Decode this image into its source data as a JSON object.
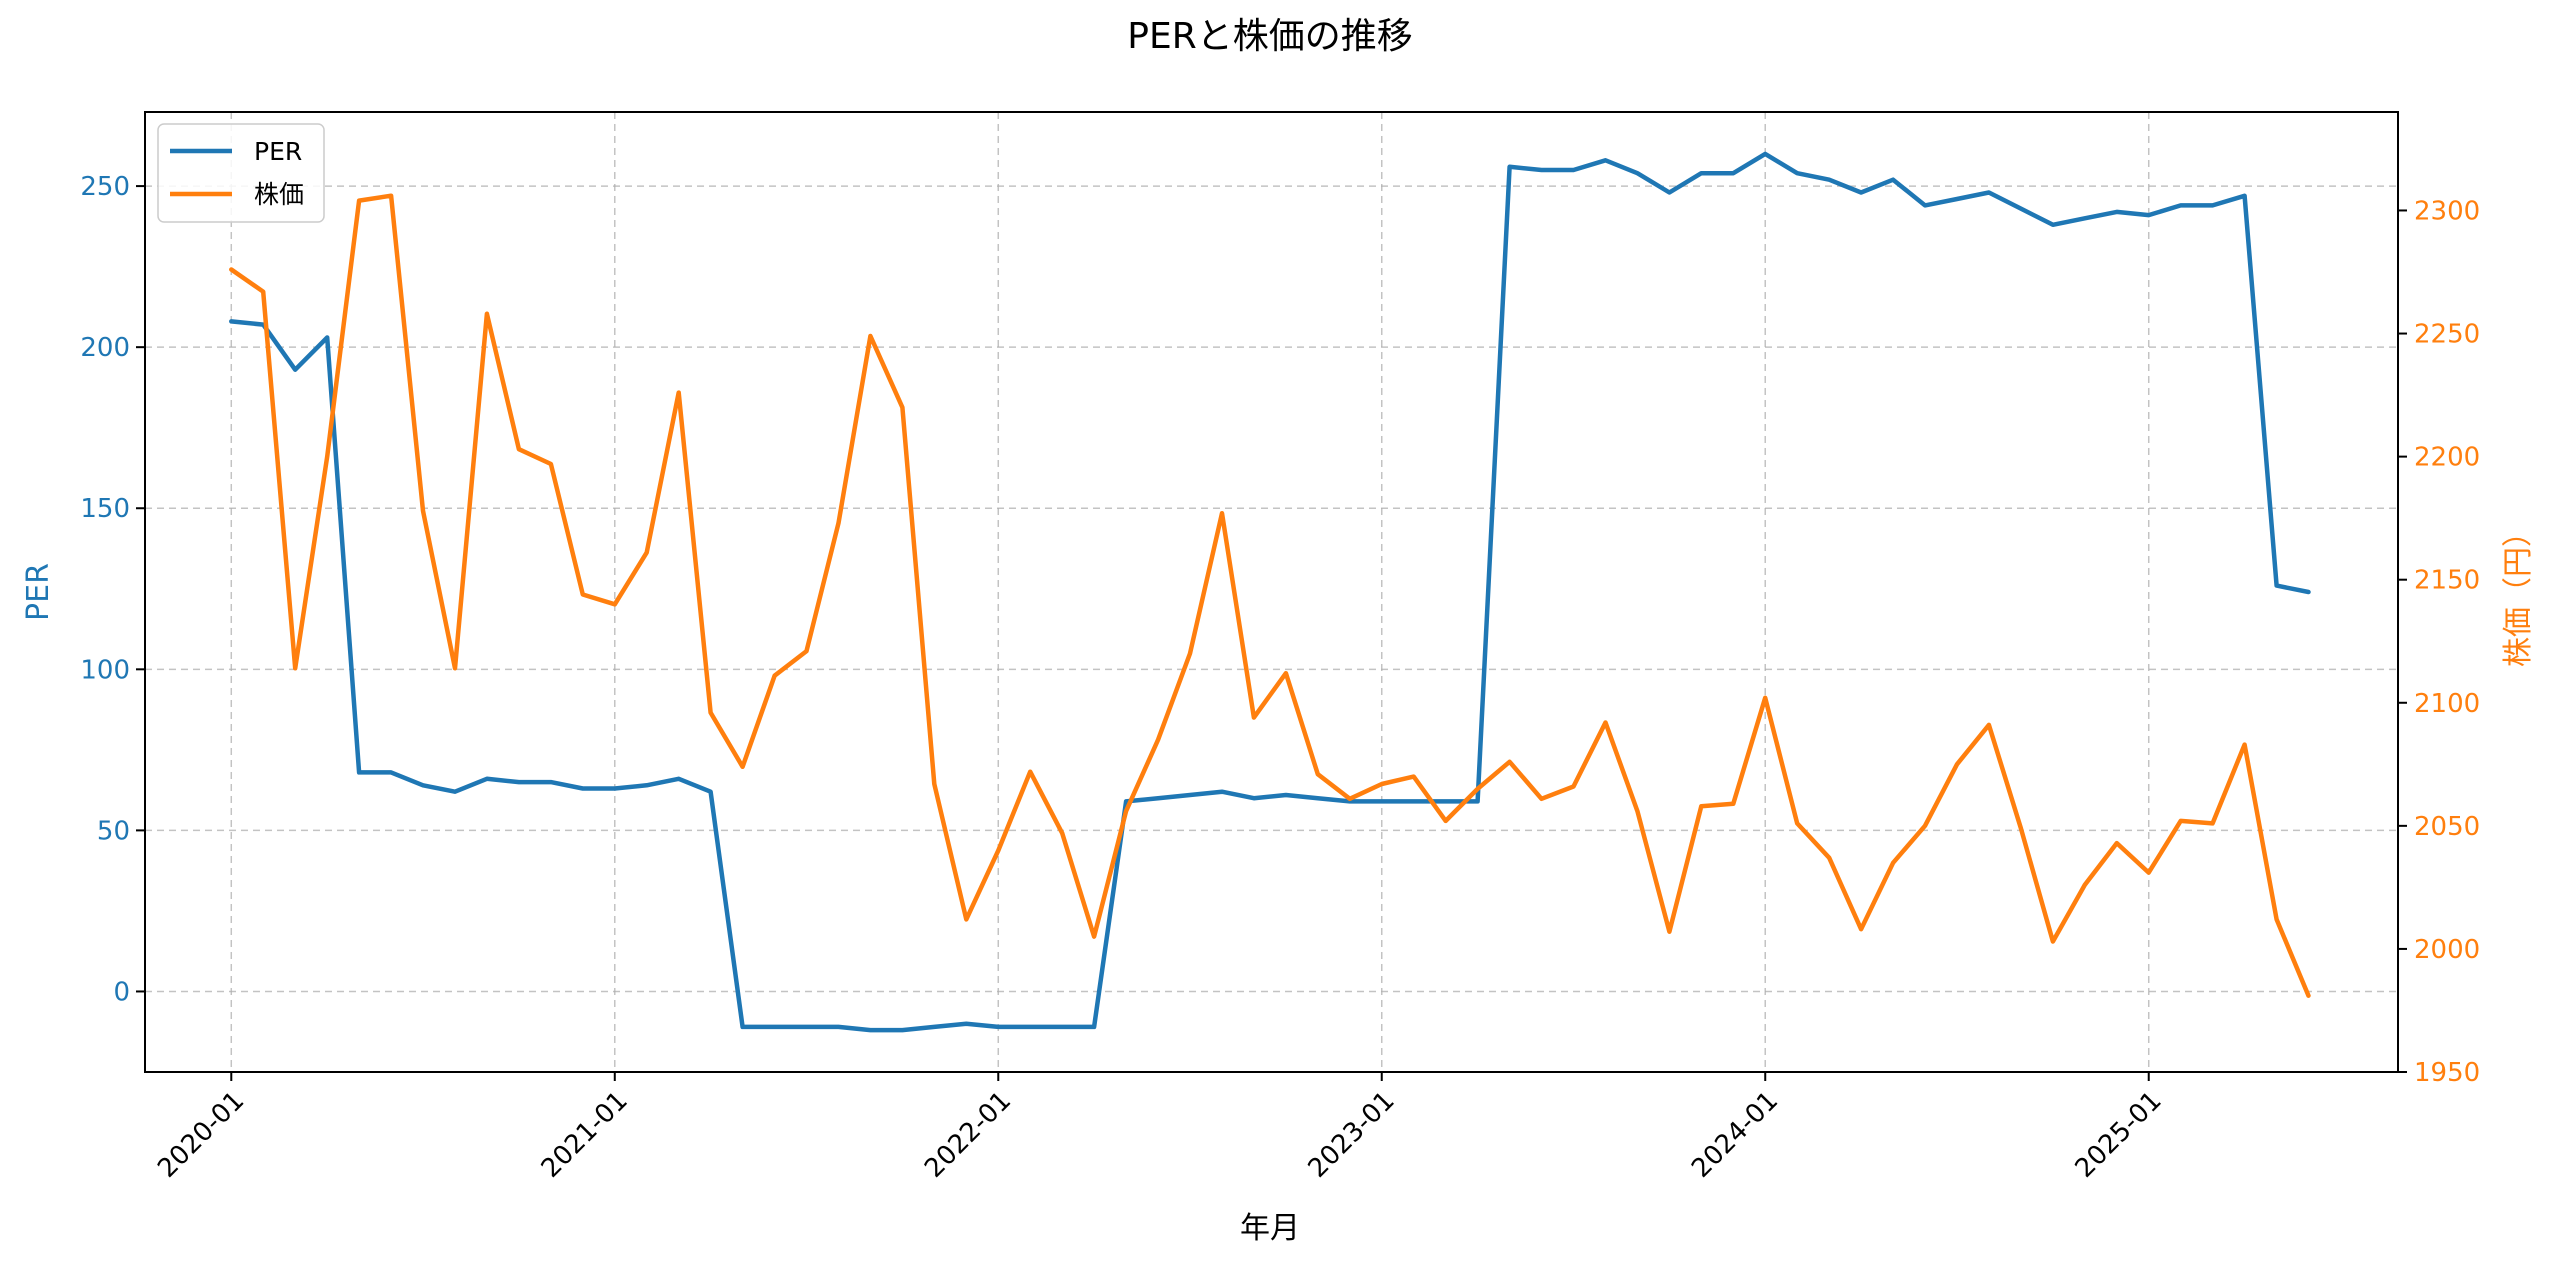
{
  "chart_data": {
    "type": "line",
    "title": "PERと株価の推移",
    "xlabel": "年月",
    "ylabel_left": "PER",
    "ylabel_right": "株価（円）",
    "x_tick_labels": [
      "2020-01",
      "2021-01",
      "2022-01",
      "2023-01",
      "2024-01",
      "2025-01"
    ],
    "x_range_months": [
      -2.7,
      67.8
    ],
    "y_left_range": [
      -25,
      273
    ],
    "y_right_range": [
      1950,
      2340
    ],
    "y_left_ticks": [
      0,
      50,
      100,
      150,
      200,
      250
    ],
    "y_right_ticks": [
      1950,
      2000,
      2050,
      2100,
      2150,
      2200,
      2250,
      2300
    ],
    "grid": true,
    "legend_position": "upper-left",
    "colors": {
      "per": "#1f77b4",
      "price": "#ff7f0e",
      "grid": "#b0b0b0",
      "text": "#000000"
    },
    "series": [
      {
        "name": "PER",
        "axis": "left",
        "x_months": [
          0,
          1,
          2,
          3,
          4,
          5,
          6,
          7,
          8,
          9,
          10,
          11,
          12,
          13,
          14,
          15,
          16,
          17,
          18,
          19,
          20,
          21,
          22,
          23,
          24,
          25,
          26,
          27,
          28,
          29,
          30,
          31,
          32,
          33,
          34,
          35,
          36,
          37,
          38,
          39,
          40,
          41,
          42,
          43,
          44,
          45,
          46,
          47,
          48,
          49,
          50,
          51,
          52,
          53,
          54,
          55,
          56,
          57,
          58,
          59,
          60,
          61,
          62,
          63,
          64,
          65
        ],
        "values": [
          208,
          207,
          193,
          203,
          68,
          68,
          64,
          62,
          66,
          65,
          65,
          63,
          63,
          64,
          66,
          62,
          -11,
          -11,
          -11,
          -11,
          -12,
          -12,
          -11,
          -10,
          -11,
          -11,
          -11,
          -11,
          59,
          60,
          61,
          62,
          60,
          61,
          60,
          59,
          59,
          59,
          59,
          59,
          256,
          255,
          255,
          258,
          254,
          248,
          254,
          254,
          260,
          254,
          252,
          248,
          252,
          244,
          246,
          248,
          243,
          238,
          240,
          242,
          241,
          244,
          244,
          247,
          126,
          124
        ]
      },
      {
        "name": "株価",
        "axis": "right",
        "x_months": [
          0,
          1,
          2,
          3,
          4,
          5,
          6,
          7,
          8,
          9,
          10,
          11,
          12,
          13,
          14,
          15,
          16,
          17,
          18,
          19,
          20,
          21,
          22,
          23,
          24,
          25,
          26,
          27,
          28,
          29,
          30,
          31,
          32,
          33,
          34,
          35,
          36,
          37,
          38,
          39,
          40,
          41,
          42,
          43,
          44,
          45,
          46,
          47,
          48,
          49,
          50,
          51,
          52,
          53,
          54,
          55,
          56,
          57,
          58,
          59,
          60,
          61,
          62,
          63,
          64,
          65
        ],
        "values": [
          2276,
          2267,
          2114,
          2200,
          2304,
          2306,
          2178,
          2114,
          2258,
          2203,
          2197,
          2144,
          2140,
          2161,
          2226,
          2096,
          2074,
          2111,
          2121,
          2173,
          2249,
          2220,
          2067,
          2012,
          2040,
          2072,
          2047,
          2005,
          2056,
          2085,
          2120,
          2177,
          2094,
          2112,
          2071,
          2061,
          2067,
          2070,
          2052,
          2065,
          2076,
          2061,
          2066,
          2092,
          2056,
          2007,
          2058,
          2059,
          2102,
          2051,
          2037,
          2008,
          2035,
          2050,
          2075,
          2091,
          2049,
          2003,
          2026,
          2043,
          2031,
          2052,
          2051,
          2083,
          2012,
          1981
        ]
      }
    ]
  }
}
